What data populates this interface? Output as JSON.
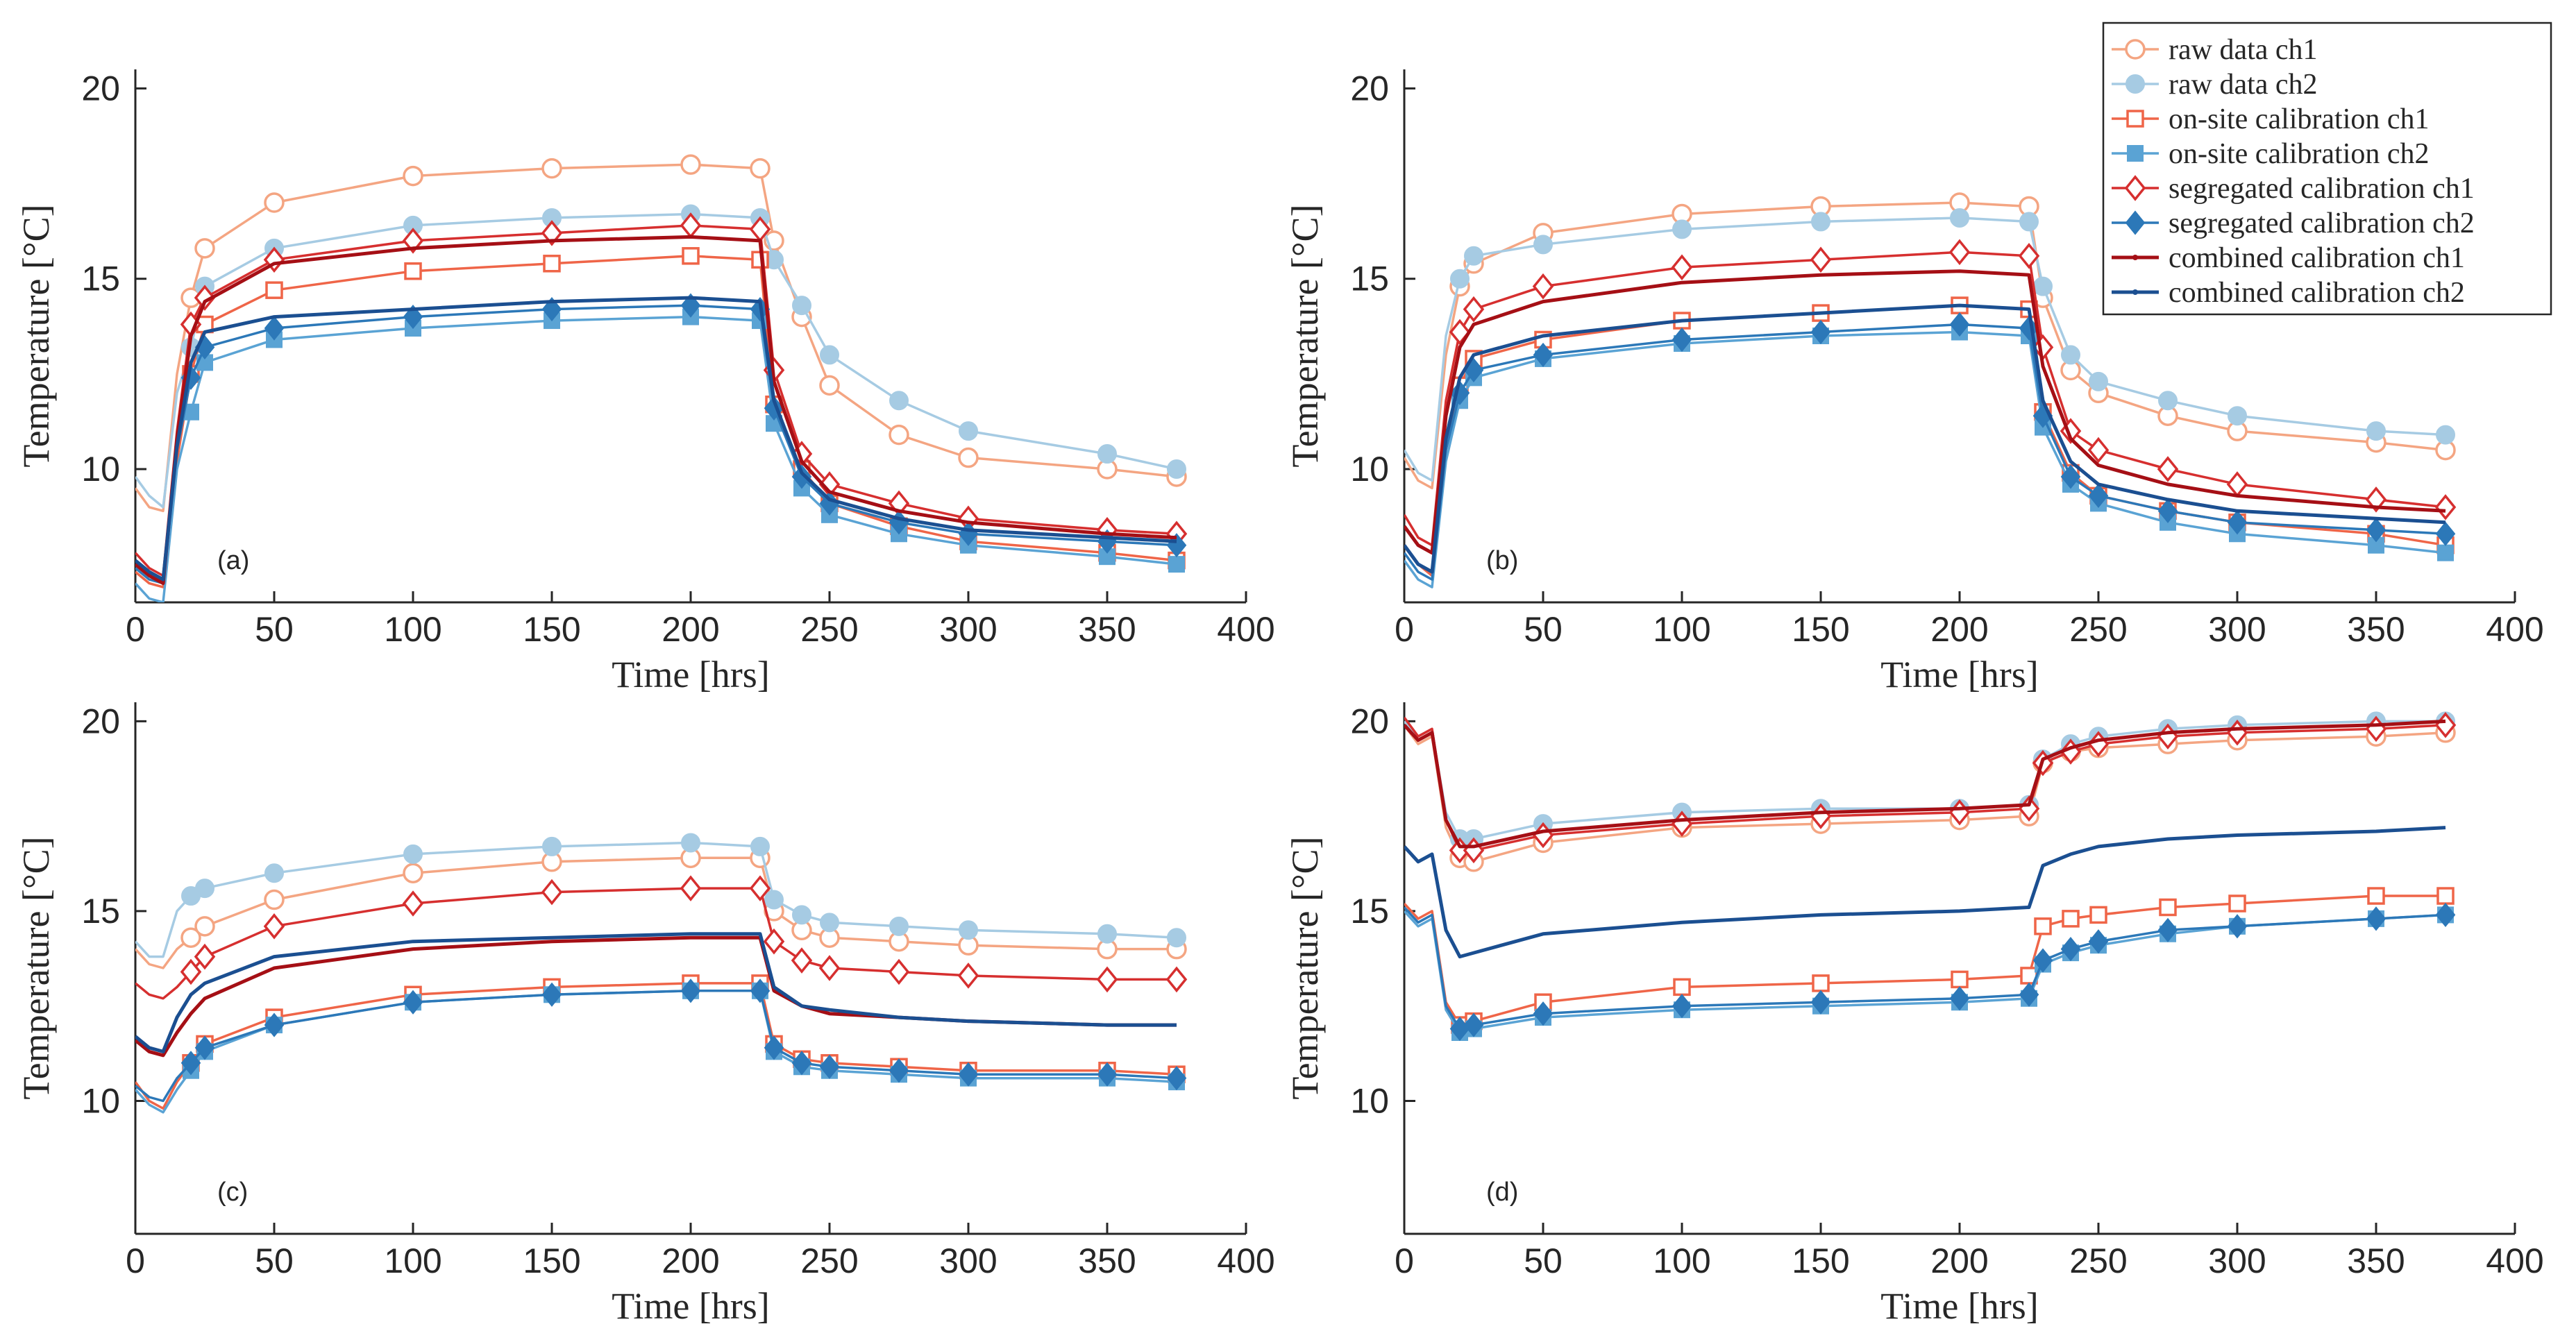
{
  "figure": {
    "legend": {
      "placement": "top-right",
      "entries": [
        {
          "key": "raw1",
          "label": "raw data ch1",
          "color": "#f4a582",
          "marker": "circle-open",
          "line": "thin"
        },
        {
          "key": "raw2",
          "label": "raw data ch2",
          "color": "#a6cbe3",
          "marker": "circle-filled",
          "line": "thin"
        },
        {
          "key": "ons1",
          "label": "on-site calibration ch1",
          "color": "#ef6548",
          "marker": "square-open",
          "line": "thin"
        },
        {
          "key": "ons2",
          "label": "on-site calibration ch2",
          "color": "#5aa3d4",
          "marker": "square-filled",
          "line": "thin"
        },
        {
          "key": "seg1",
          "label": "segregated calibration ch1",
          "color": "#d62f2f",
          "marker": "diamond-open",
          "line": "thin"
        },
        {
          "key": "seg2",
          "label": "segregated calibration ch2",
          "color": "#2c78b8",
          "marker": "diamond-filled",
          "line": "thin"
        },
        {
          "key": "com1",
          "label": "combined calibration ch1",
          "color": "#a50f15",
          "marker": "dot",
          "line": "thick"
        },
        {
          "key": "com2",
          "label": "combined calibration ch2",
          "color": "#1b4f91",
          "marker": "dot",
          "line": "thick"
        }
      ]
    }
  },
  "chart_data": [
    {
      "type": "line",
      "panel": "(a)",
      "xlabel": "Time [hrs]",
      "ylabel": "Temperature [°C]",
      "xlim": [
        0,
        400
      ],
      "ylim": [
        6.5,
        20.5
      ],
      "xticks": [
        "0",
        "50",
        "100",
        "150",
        "200",
        "250",
        "300",
        "350",
        "400"
      ],
      "yticks": [
        "10",
        "15",
        "20"
      ],
      "x": [
        0,
        5,
        10,
        15,
        20,
        25,
        50,
        100,
        150,
        200,
        225,
        230,
        240,
        250,
        275,
        300,
        350,
        375
      ],
      "series": [
        {
          "key": "raw1",
          "values": [
            9.5,
            9.0,
            8.9,
            12.5,
            14.5,
            15.8,
            17.0,
            17.7,
            17.9,
            18.0,
            17.9,
            16.0,
            14.0,
            12.2,
            10.9,
            10.3,
            10.0,
            9.8
          ]
        },
        {
          "key": "raw2",
          "values": [
            9.8,
            9.3,
            9.0,
            12.0,
            13.2,
            14.8,
            15.8,
            16.4,
            16.6,
            16.7,
            16.6,
            15.5,
            14.3,
            13.0,
            11.8,
            11.0,
            10.4,
            10.0
          ]
        },
        {
          "key": "ons1",
          "values": [
            7.3,
            7.0,
            6.9,
            10.2,
            12.5,
            13.8,
            14.7,
            15.2,
            15.4,
            15.6,
            15.5,
            11.7,
            10.0,
            9.1,
            8.5,
            8.1,
            7.8,
            7.6
          ]
        },
        {
          "key": "ons2",
          "values": [
            7.0,
            6.6,
            6.5,
            10.0,
            11.5,
            12.8,
            13.4,
            13.7,
            13.9,
            14.0,
            13.9,
            11.2,
            9.5,
            8.8,
            8.3,
            8.0,
            7.7,
            7.5
          ]
        },
        {
          "key": "seg1",
          "values": [
            7.8,
            7.4,
            7.2,
            11.0,
            13.8,
            14.5,
            15.5,
            16.0,
            16.2,
            16.4,
            16.3,
            12.6,
            10.4,
            9.6,
            9.1,
            8.7,
            8.4,
            8.3
          ]
        },
        {
          "key": "seg2",
          "values": [
            7.4,
            7.1,
            7.0,
            10.5,
            12.4,
            13.2,
            13.7,
            14.0,
            14.2,
            14.3,
            14.2,
            11.6,
            9.8,
            9.1,
            8.6,
            8.3,
            8.1,
            8.0
          ]
        },
        {
          "key": "com1",
          "values": [
            7.5,
            7.2,
            7.0,
            10.8,
            13.5,
            14.4,
            15.4,
            15.8,
            16.0,
            16.1,
            16.0,
            12.3,
            10.2,
            9.4,
            8.9,
            8.6,
            8.3,
            8.2
          ]
        },
        {
          "key": "com2",
          "values": [
            7.6,
            7.3,
            7.1,
            10.6,
            12.8,
            13.6,
            14.0,
            14.2,
            14.4,
            14.5,
            14.4,
            11.8,
            9.9,
            9.2,
            8.7,
            8.4,
            8.2,
            8.1
          ]
        }
      ]
    },
    {
      "type": "line",
      "panel": "(b)",
      "xlabel": "Time [hrs]",
      "ylabel": "Temperature [°C]",
      "xlim": [
        0,
        400
      ],
      "ylim": [
        6.5,
        20.5
      ],
      "xticks": [
        "0",
        "50",
        "100",
        "150",
        "200",
        "250",
        "300",
        "350",
        "400"
      ],
      "yticks": [
        "10",
        "15",
        "20"
      ],
      "x": [
        0,
        5,
        10,
        15,
        20,
        25,
        50,
        100,
        150,
        200,
        225,
        230,
        240,
        250,
        275,
        300,
        350,
        375
      ],
      "series": [
        {
          "key": "raw1",
          "values": [
            10.3,
            9.7,
            9.5,
            13.0,
            14.8,
            15.4,
            16.2,
            16.7,
            16.9,
            17.0,
            16.9,
            14.5,
            12.6,
            12.0,
            11.4,
            11.0,
            10.7,
            10.5
          ]
        },
        {
          "key": "raw2",
          "values": [
            10.5,
            9.9,
            9.7,
            13.5,
            15.0,
            15.6,
            15.9,
            16.3,
            16.5,
            16.6,
            16.5,
            14.8,
            13.0,
            12.3,
            11.8,
            11.4,
            11.0,
            10.9
          ]
        },
        {
          "key": "ons1",
          "values": [
            8.0,
            7.5,
            7.2,
            10.5,
            12.2,
            12.9,
            13.4,
            13.9,
            14.1,
            14.3,
            14.2,
            11.5,
            9.9,
            9.3,
            8.9,
            8.6,
            8.3,
            8.0
          ]
        },
        {
          "key": "ons2",
          "values": [
            7.6,
            7.1,
            6.9,
            10.2,
            11.8,
            12.4,
            12.9,
            13.3,
            13.5,
            13.6,
            13.5,
            11.1,
            9.6,
            9.1,
            8.6,
            8.3,
            8.0,
            7.8
          ]
        },
        {
          "key": "seg1",
          "values": [
            8.8,
            8.2,
            8.0,
            11.8,
            13.6,
            14.2,
            14.8,
            15.3,
            15.5,
            15.7,
            15.6,
            13.2,
            11.0,
            10.5,
            10.0,
            9.6,
            9.2,
            9.0
          ]
        },
        {
          "key": "seg2",
          "values": [
            7.8,
            7.3,
            7.1,
            10.5,
            12.0,
            12.6,
            13.0,
            13.4,
            13.6,
            13.8,
            13.7,
            11.4,
            9.8,
            9.3,
            8.9,
            8.6,
            8.4,
            8.3
          ]
        },
        {
          "key": "com1",
          "values": [
            8.5,
            8.0,
            7.8,
            11.4,
            13.2,
            13.8,
            14.4,
            14.9,
            15.1,
            15.2,
            15.1,
            12.7,
            10.8,
            10.1,
            9.6,
            9.3,
            9.0,
            8.9
          ]
        },
        {
          "key": "com2",
          "values": [
            8.0,
            7.5,
            7.3,
            10.8,
            12.4,
            13.0,
            13.5,
            13.9,
            14.1,
            14.3,
            14.2,
            11.8,
            10.2,
            9.6,
            9.2,
            8.9,
            8.7,
            8.6
          ]
        }
      ]
    },
    {
      "type": "line",
      "panel": "(c)",
      "xlabel": "Time [hrs]",
      "ylabel": "Temperature [°C]",
      "xlim": [
        0,
        400
      ],
      "ylim": [
        6.5,
        20.5
      ],
      "xticks": [
        "0",
        "50",
        "100",
        "150",
        "200",
        "250",
        "300",
        "350",
        "400"
      ],
      "yticks": [
        "10",
        "15",
        "20"
      ],
      "x": [
        0,
        5,
        10,
        15,
        20,
        25,
        50,
        100,
        150,
        200,
        225,
        230,
        240,
        250,
        275,
        300,
        350,
        375
      ],
      "series": [
        {
          "key": "raw1",
          "values": [
            14.0,
            13.6,
            13.5,
            14.0,
            14.3,
            14.6,
            15.3,
            16.0,
            16.3,
            16.4,
            16.4,
            15.0,
            14.5,
            14.3,
            14.2,
            14.1,
            14.0,
            14.0
          ]
        },
        {
          "key": "raw2",
          "values": [
            14.2,
            13.8,
            13.8,
            15.0,
            15.4,
            15.6,
            16.0,
            16.5,
            16.7,
            16.8,
            16.7,
            15.3,
            14.9,
            14.7,
            14.6,
            14.5,
            14.4,
            14.3
          ]
        },
        {
          "key": "ons1",
          "values": [
            10.5,
            10.0,
            9.8,
            10.5,
            11.0,
            11.5,
            12.2,
            12.8,
            13.0,
            13.1,
            13.1,
            11.5,
            11.1,
            11.0,
            10.9,
            10.8,
            10.8,
            10.7
          ]
        },
        {
          "key": "ons2",
          "values": [
            10.3,
            9.9,
            9.7,
            10.3,
            10.8,
            11.3,
            12.0,
            12.6,
            12.8,
            12.9,
            12.9,
            11.3,
            10.9,
            10.8,
            10.7,
            10.6,
            10.6,
            10.5
          ]
        },
        {
          "key": "seg1",
          "values": [
            13.1,
            12.8,
            12.7,
            13.0,
            13.4,
            13.8,
            14.6,
            15.2,
            15.5,
            15.6,
            15.6,
            14.2,
            13.7,
            13.5,
            13.4,
            13.3,
            13.2,
            13.2
          ]
        },
        {
          "key": "seg2",
          "values": [
            10.4,
            10.1,
            10.0,
            10.6,
            11.0,
            11.4,
            12.0,
            12.6,
            12.8,
            12.9,
            12.9,
            11.4,
            11.0,
            10.9,
            10.8,
            10.7,
            10.7,
            10.6
          ]
        },
        {
          "key": "com1",
          "values": [
            11.6,
            11.3,
            11.2,
            11.8,
            12.3,
            12.7,
            13.5,
            14.0,
            14.2,
            14.3,
            14.3,
            12.9,
            12.5,
            12.3,
            12.2,
            12.1,
            12.0,
            12.0
          ]
        },
        {
          "key": "com2",
          "values": [
            11.7,
            11.4,
            11.3,
            12.2,
            12.8,
            13.1,
            13.8,
            14.2,
            14.3,
            14.4,
            14.4,
            13.0,
            12.5,
            12.4,
            12.2,
            12.1,
            12.0,
            12.0
          ]
        }
      ]
    },
    {
      "type": "line",
      "panel": "(d)",
      "xlabel": "Time [hrs]",
      "ylabel": "Temperature [°C]",
      "xlim": [
        0,
        400
      ],
      "ylim": [
        6.5,
        20.5
      ],
      "xticks": [
        "0",
        "50",
        "100",
        "150",
        "200",
        "250",
        "300",
        "350",
        "400"
      ],
      "yticks": [
        "10",
        "15",
        "20"
      ],
      "x": [
        0,
        5,
        10,
        15,
        20,
        25,
        50,
        100,
        150,
        200,
        225,
        230,
        240,
        250,
        275,
        300,
        350,
        375
      ],
      "series": [
        {
          "key": "raw1",
          "values": [
            19.9,
            19.4,
            19.6,
            17.2,
            16.4,
            16.3,
            16.8,
            17.2,
            17.3,
            17.4,
            17.5,
            18.9,
            19.2,
            19.3,
            19.4,
            19.5,
            19.6,
            19.7
          ]
        },
        {
          "key": "raw2",
          "values": [
            20.0,
            19.5,
            19.7,
            17.6,
            16.9,
            16.9,
            17.3,
            17.6,
            17.7,
            17.7,
            17.8,
            19.0,
            19.4,
            19.6,
            19.8,
            19.9,
            20.0,
            20.0
          ]
        },
        {
          "key": "ons1",
          "values": [
            15.2,
            14.8,
            15.0,
            12.6,
            12.0,
            12.1,
            12.6,
            13.0,
            13.1,
            13.2,
            13.3,
            14.6,
            14.8,
            14.9,
            15.1,
            15.2,
            15.4,
            15.4
          ]
        },
        {
          "key": "ons2",
          "values": [
            15.0,
            14.6,
            14.8,
            12.4,
            11.8,
            11.9,
            12.2,
            12.4,
            12.5,
            12.6,
            12.7,
            13.6,
            13.9,
            14.1,
            14.4,
            14.6,
            14.8,
            14.9
          ]
        },
        {
          "key": "seg1",
          "values": [
            20.1,
            19.6,
            19.8,
            17.4,
            16.6,
            16.6,
            17.0,
            17.3,
            17.5,
            17.6,
            17.7,
            18.9,
            19.2,
            19.4,
            19.6,
            19.7,
            19.8,
            19.9
          ]
        },
        {
          "key": "seg2",
          "values": [
            15.1,
            14.7,
            14.9,
            12.5,
            11.9,
            12.0,
            12.3,
            12.5,
            12.6,
            12.7,
            12.8,
            13.7,
            14.0,
            14.2,
            14.5,
            14.6,
            14.8,
            14.9
          ]
        },
        {
          "key": "com1",
          "values": [
            19.9,
            19.5,
            19.7,
            17.4,
            16.7,
            16.7,
            17.1,
            17.4,
            17.6,
            17.7,
            17.8,
            19.0,
            19.3,
            19.5,
            19.7,
            19.8,
            19.9,
            20.0
          ]
        },
        {
          "key": "com2",
          "values": [
            16.7,
            16.3,
            16.5,
            14.5,
            13.8,
            13.9,
            14.4,
            14.7,
            14.9,
            15.0,
            15.1,
            16.2,
            16.5,
            16.7,
            16.9,
            17.0,
            17.1,
            17.2
          ]
        }
      ]
    }
  ]
}
